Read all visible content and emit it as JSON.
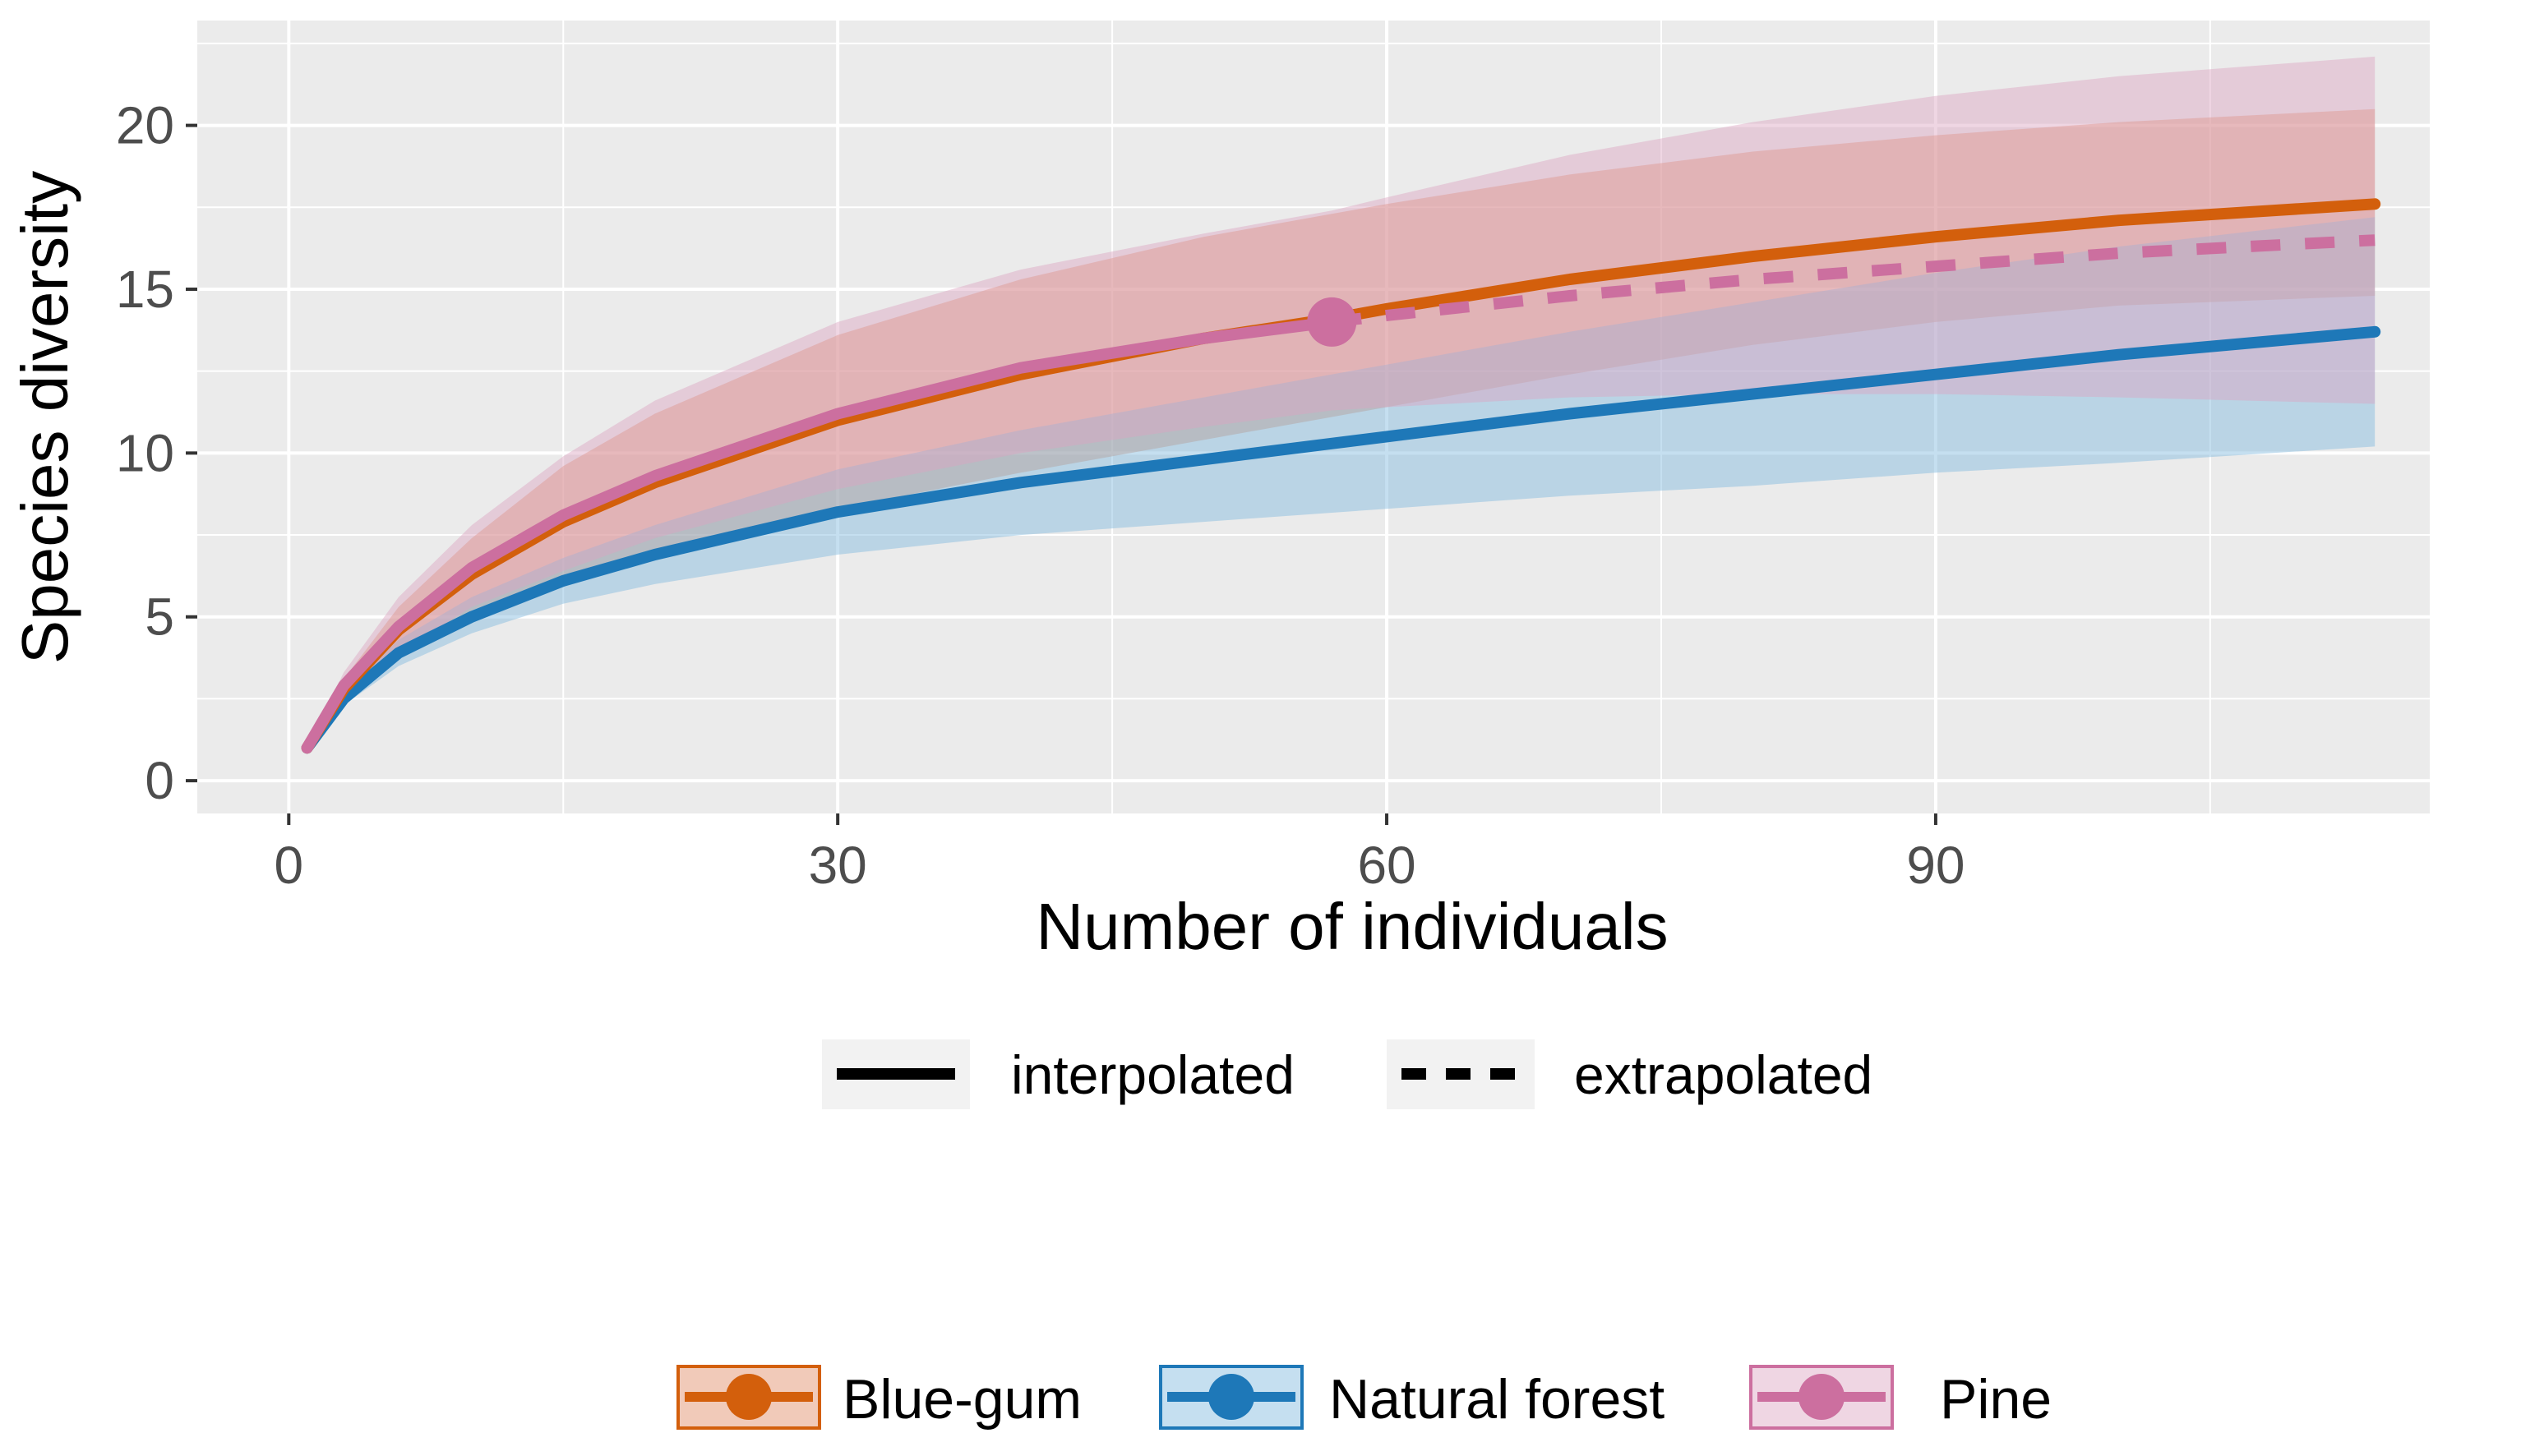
{
  "chart_data": {
    "type": "line",
    "title": "",
    "xlabel": "Number of individuals",
    "ylabel": "Species diversity",
    "xlim": [
      -5,
      117
    ],
    "ylim": [
      -1,
      23.2
    ],
    "xticks": [
      0,
      30,
      60,
      90
    ],
    "yticks": [
      0,
      5,
      10,
      15,
      20
    ],
    "grid": true,
    "linetype_legend": {
      "position": "below",
      "items": [
        {
          "label": "interpolated",
          "style": "solid"
        },
        {
          "label": "extrapolated",
          "style": "dashed"
        }
      ]
    },
    "color_legend": {
      "position": "bottom",
      "items": [
        {
          "label": "Blue-gum",
          "color": "#d35f0c"
        },
        {
          "label": "Natural forest",
          "color": "#1e78b8"
        },
        {
          "label": "Pine",
          "color": "#cc6f9f"
        }
      ]
    },
    "series": [
      {
        "name": "Blue-gum",
        "color": "#d35f0c",
        "band_color": "#e08a63",
        "observed_n": 114,
        "x": [
          1,
          3,
          6,
          10,
          15,
          20,
          30,
          40,
          50,
          57,
          60,
          70,
          80,
          90,
          100,
          114
        ],
        "y": [
          1,
          2.8,
          4.6,
          6.3,
          7.9,
          9.1,
          11.0,
          12.4,
          13.5,
          14.1,
          14.4,
          15.3,
          16.0,
          16.6,
          17.1,
          17.6
        ],
        "lower": [
          1,
          2.5,
          3.9,
          5.2,
          6.2,
          7.0,
          8.3,
          9.4,
          10.4,
          11.1,
          11.4,
          12.4,
          13.3,
          14.0,
          14.5,
          14.8
        ],
        "upper": [
          1,
          3.1,
          5.3,
          7.4,
          9.6,
          11.2,
          13.6,
          15.3,
          16.6,
          17.3,
          17.6,
          18.5,
          19.2,
          19.7,
          20.1,
          20.5
        ]
      },
      {
        "name": "Natural forest",
        "color": "#1e78b8",
        "band_color": "#7fb9dd",
        "observed_n": 114,
        "x": [
          1,
          3,
          6,
          10,
          15,
          20,
          30,
          40,
          50,
          60,
          70,
          80,
          90,
          100,
          114
        ],
        "y": [
          1,
          2.5,
          3.9,
          5.0,
          6.1,
          6.9,
          8.2,
          9.1,
          9.8,
          10.5,
          11.2,
          11.8,
          12.4,
          13.0,
          13.7
        ],
        "lower": [
          1,
          2.3,
          3.5,
          4.5,
          5.4,
          6.0,
          6.9,
          7.5,
          7.9,
          8.3,
          8.7,
          9.0,
          9.4,
          9.7,
          10.2
        ],
        "upper": [
          1,
          2.7,
          4.3,
          5.6,
          6.8,
          7.8,
          9.5,
          10.7,
          11.7,
          12.7,
          13.7,
          14.6,
          15.5,
          16.3,
          17.2
        ]
      },
      {
        "name": "Pine",
        "color": "#cc6f9f",
        "band_color": "#dca3c1",
        "observed_n": 57,
        "x": [
          1,
          3,
          6,
          10,
          15,
          20,
          30,
          40,
          50,
          57,
          60,
          70,
          80,
          90,
          100,
          114
        ],
        "y": [
          1,
          2.9,
          4.7,
          6.5,
          8.1,
          9.3,
          11.2,
          12.6,
          13.5,
          14.0,
          14.2,
          14.8,
          15.3,
          15.7,
          16.1,
          16.5
        ],
        "lower": [
          1,
          2.5,
          3.9,
          5.3,
          6.4,
          7.4,
          8.9,
          10.0,
          10.8,
          11.3,
          11.4,
          11.7,
          11.8,
          11.8,
          11.7,
          11.5
        ],
        "upper": [
          1,
          3.3,
          5.6,
          7.8,
          9.9,
          11.6,
          14.0,
          15.6,
          16.7,
          17.4,
          17.8,
          19.1,
          20.1,
          20.9,
          21.5,
          22.1
        ]
      }
    ]
  }
}
